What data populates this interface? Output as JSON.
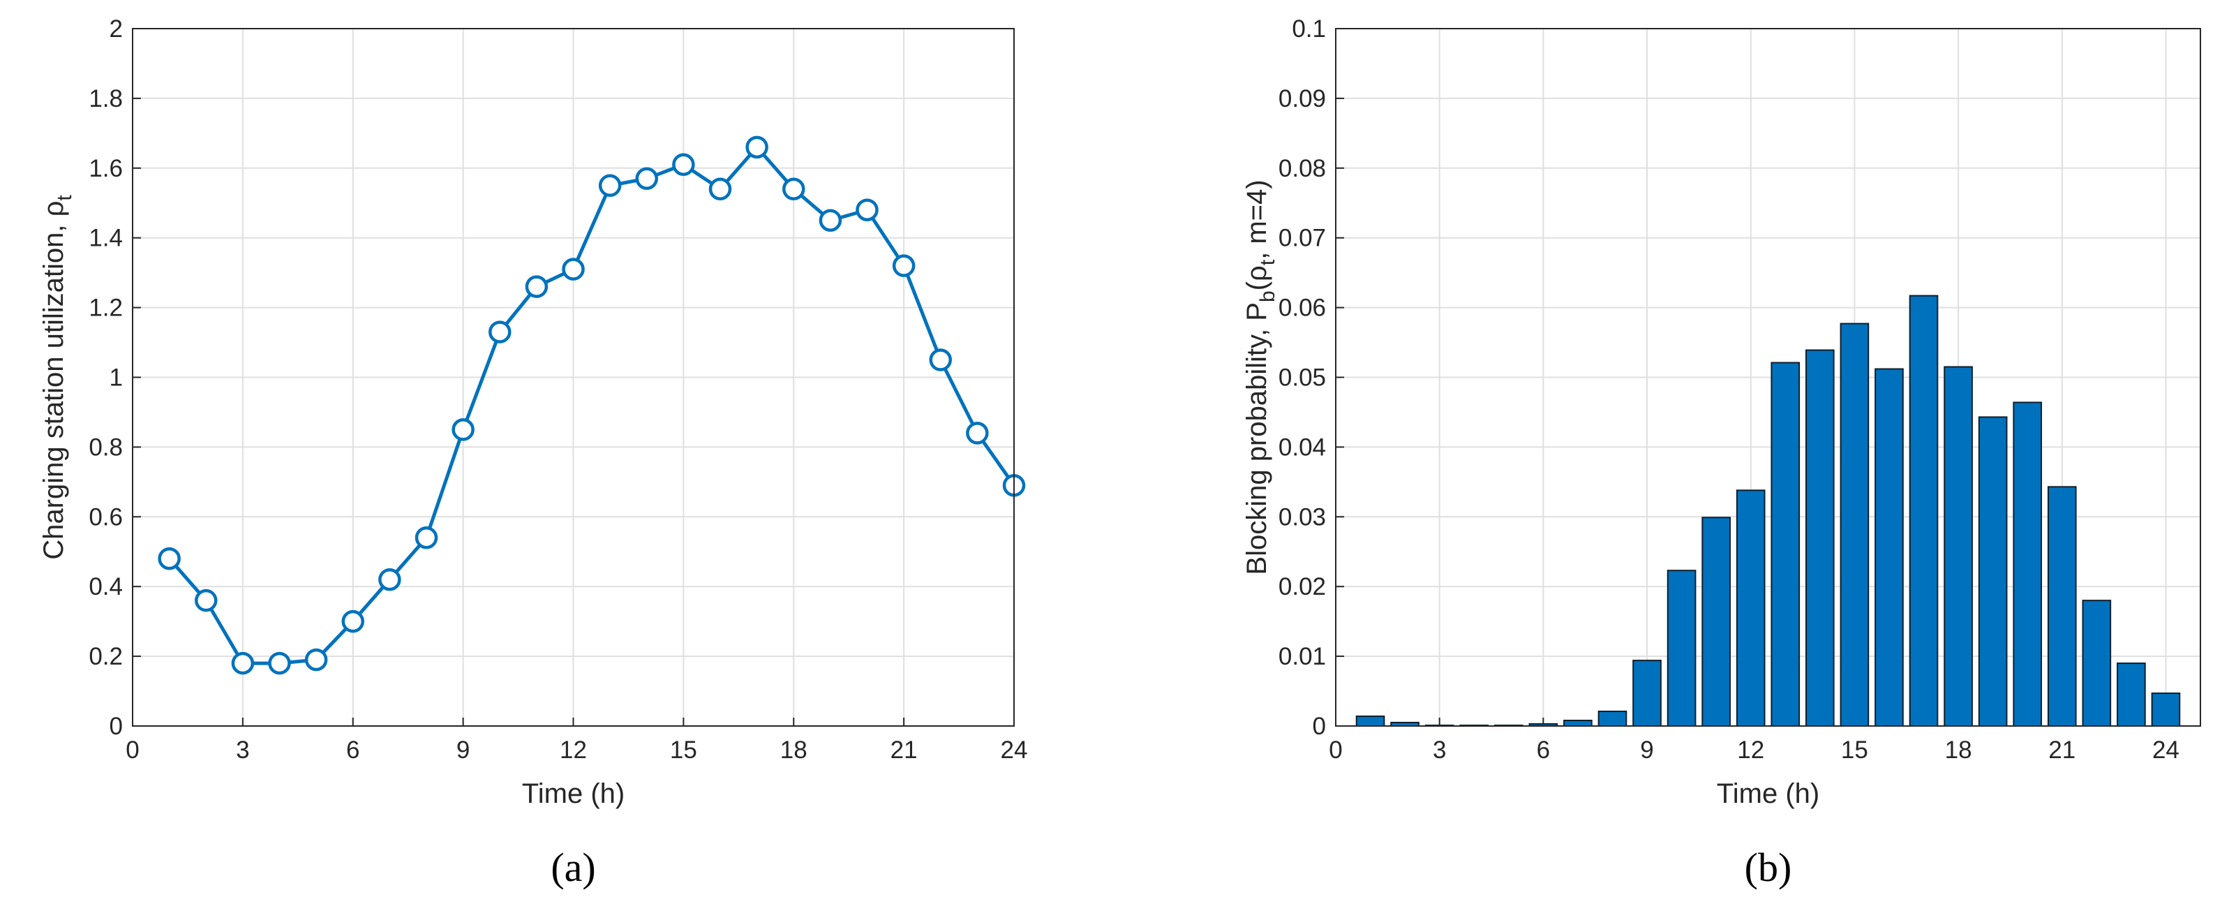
{
  "chart_data": [
    {
      "type": "line",
      "caption": "(a)",
      "xlabel": "Time (h)",
      "ylabel_parts": [
        "Charging station utilization, ρ",
        "t"
      ],
      "x": [
        1,
        2,
        3,
        4,
        5,
        6,
        7,
        8,
        9,
        10,
        11,
        12,
        13,
        14,
        15,
        16,
        17,
        18,
        19,
        20,
        21,
        22,
        23,
        24
      ],
      "values": [
        0.48,
        0.36,
        0.18,
        0.18,
        0.19,
        0.3,
        0.42,
        0.54,
        0.85,
        1.13,
        1.26,
        1.31,
        1.55,
        1.57,
        1.61,
        1.54,
        1.66,
        1.54,
        1.45,
        1.48,
        1.32,
        1.05,
        0.84,
        0.69
      ],
      "color": "#0072bd",
      "marker": "circle",
      "xlim": [
        0,
        24
      ],
      "xticks": [
        0,
        3,
        6,
        9,
        12,
        15,
        18,
        21,
        24
      ],
      "ylim": [
        0,
        2
      ],
      "yticks": [
        0,
        0.2,
        0.4,
        0.6,
        0.8,
        1,
        1.2,
        1.4,
        1.6,
        1.8,
        2
      ],
      "grid": true
    },
    {
      "type": "bar",
      "caption": "(b)",
      "xlabel": "Time (h)",
      "ylabel_parts": [
        "Blocking probability, P",
        "b",
        "(ρ",
        "t",
        ", m=4)"
      ],
      "x": [
        1,
        2,
        3,
        4,
        5,
        6,
        7,
        8,
        9,
        10,
        11,
        12,
        13,
        14,
        15,
        16,
        17,
        18,
        19,
        20,
        21,
        22,
        23,
        24
      ],
      "values": [
        0.0014,
        0.0005,
        0.0001,
        0.0001,
        0.0001,
        0.0003,
        0.0008,
        0.0021,
        0.0094,
        0.0223,
        0.0299,
        0.0338,
        0.0521,
        0.0539,
        0.0577,
        0.0512,
        0.0617,
        0.0515,
        0.0443,
        0.0464,
        0.0343,
        0.018,
        0.009,
        0.0047
      ],
      "color": "#0072bd",
      "xlim": [
        0,
        25
      ],
      "xticks": [
        0,
        3,
        6,
        9,
        12,
        15,
        18,
        21,
        24
      ],
      "ylim": [
        0,
        0.1
      ],
      "yticks": [
        0,
        0.01,
        0.02,
        0.03,
        0.04,
        0.05,
        0.06,
        0.07,
        0.08,
        0.09,
        0.1
      ],
      "grid": true
    }
  ]
}
